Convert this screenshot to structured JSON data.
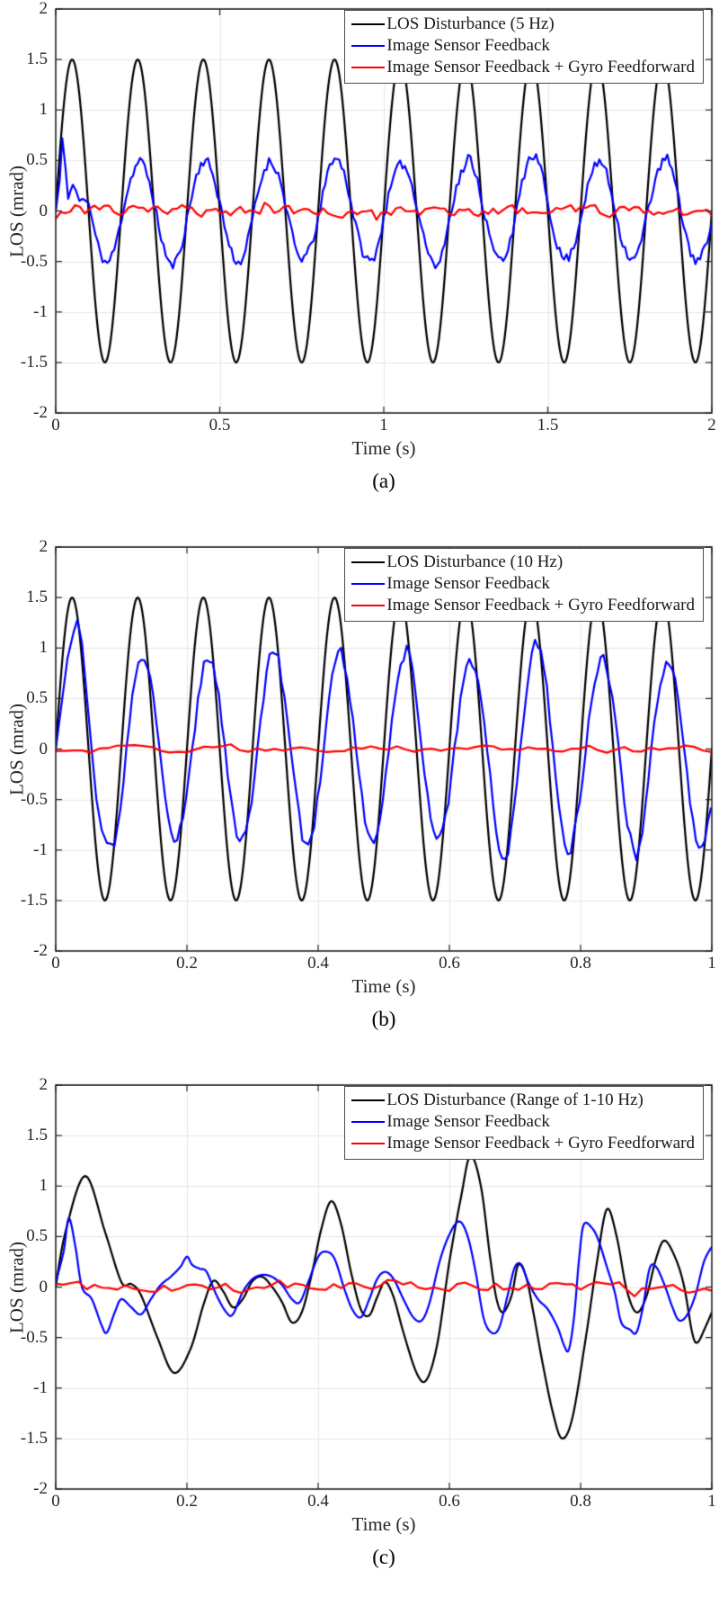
{
  "chart_data": [
    {
      "id": "a",
      "type": "line",
      "caption": "(a)",
      "xlabel": "Time (s)",
      "ylabel": "LOS (mrad)",
      "xlim": [
        0,
        2
      ],
      "ylim": [
        -2,
        2
      ],
      "grid": true,
      "legend_position": "top-right",
      "background": "#ffffff",
      "axis_color": "#262626",
      "grid_color": "#e6e6e6",
      "xticks": {
        "values": [
          0,
          0.5,
          1,
          1.5,
          2
        ],
        "labels": [
          "0",
          "0.5",
          "1",
          "1.5",
          "2"
        ]
      },
      "yticks": {
        "values": [
          2,
          1.5,
          1,
          0.5,
          0,
          -0.5,
          -1,
          -1.5,
          -2
        ],
        "labels": [
          "2",
          "1.5",
          "1",
          "0.5",
          "0",
          "-0.5",
          "-1",
          "-1.5",
          "-2"
        ]
      },
      "series": [
        {
          "name": "LOS Disturbance (5 Hz)",
          "color": "#000000",
          "line_width": 2.2,
          "model": {
            "kind": "sine",
            "amplitude": 1.5,
            "freq_hz": 5,
            "lag_s": 0,
            "noise": 0,
            "samples": 700
          }
        },
        {
          "name": "Image Sensor Feedback",
          "color": "#0000ff",
          "line_width": 2.2,
          "model": {
            "kind": "sine",
            "amplitude": 0.5,
            "freq_hz": 5,
            "lag_s": 0.005,
            "noise": 0.05,
            "amp_noise": 0.1,
            "noise_seed": 11,
            "samples": 280,
            "transient": [
              [
                0,
                0
              ],
              [
                0.012,
                0.3
              ],
              [
                0.02,
                0.72
              ],
              [
                0.03,
                0.42
              ],
              [
                0.038,
                0.12
              ],
              [
                0.045,
                0.2
              ],
              [
                0.052,
                0.26
              ],
              [
                0.062,
                0.2
              ],
              [
                0.072,
                0.1
              ],
              [
                0.082,
                0.12
              ],
              [
                0.092,
                0.1
              ],
              [
                0.1,
                0.08
              ]
            ]
          }
        },
        {
          "name": "Image Sensor Feedback + Gyro Feedforward",
          "color": "#ff0000",
          "line_width": 2.2,
          "model": {
            "kind": "noise",
            "amplitude": 0.075,
            "spike_prob": 0.12,
            "spike_gain": 1.9,
            "noise_seed": 23,
            "samples": 135
          }
        }
      ]
    },
    {
      "id": "b",
      "type": "line",
      "caption": "(b)",
      "xlabel": "Time (s)",
      "ylabel": "LOS (mrad)",
      "xlim": [
        0,
        1
      ],
      "ylim": [
        -2,
        2
      ],
      "grid": true,
      "legend_position": "top-right",
      "background": "#ffffff",
      "axis_color": "#262626",
      "grid_color": "#e6e6e6",
      "xticks": {
        "values": [
          0,
          0.2,
          0.4,
          0.6,
          0.8,
          1
        ],
        "labels": [
          "0",
          "0.2",
          "0.4",
          "0.6",
          "0.8",
          "1"
        ]
      },
      "yticks": {
        "values": [
          2,
          1.5,
          1,
          0.5,
          0,
          -0.5,
          -1,
          -1.5,
          -2
        ],
        "labels": [
          "2",
          "1.5",
          "1",
          "0.5",
          "0",
          "-0.5",
          "-1",
          "-1.5",
          "-2"
        ]
      },
      "series": [
        {
          "name": "LOS Disturbance (10 Hz)",
          "color": "#000000",
          "line_width": 2.2,
          "model": {
            "kind": "sine",
            "amplitude": 1.5,
            "freq_hz": 10,
            "lag_s": 0,
            "noise": 0,
            "samples": 600
          }
        },
        {
          "name": "Image Sensor Feedback",
          "color": "#0000ff",
          "line_width": 2.2,
          "model": {
            "kind": "sine",
            "amplitude": 0.97,
            "freq_hz": 10,
            "lag_s": 0.008,
            "noise": 0.05,
            "amp_noise": 0.12,
            "noise_seed": 17,
            "samples": 220,
            "transient": [
              [
                0,
                0
              ],
              [
                0.008,
                0.4
              ],
              [
                0.018,
                0.9
              ],
              [
                0.027,
                1.15
              ],
              [
                0.033,
                1.28
              ],
              [
                0.04,
                1.05
              ],
              [
                0.047,
                0.55
              ],
              [
                0.054,
                0.05
              ],
              [
                0.062,
                -0.5
              ],
              [
                0.07,
                -0.8
              ],
              [
                0.078,
                -0.93
              ],
              [
                0.085,
                -0.94
              ]
            ]
          }
        },
        {
          "name": "Image Sensor Feedback + Gyro Feedforward",
          "color": "#ff0000",
          "line_width": 2.2,
          "model": {
            "kind": "noise",
            "amplitude": 0.05,
            "spike_prob": 0.12,
            "spike_gain": 1.8,
            "noise_seed": 29,
            "samples": 75
          }
        }
      ]
    },
    {
      "id": "c",
      "type": "line",
      "caption": "(c)",
      "xlabel": "Time (s)",
      "ylabel": "LOS (mrad)",
      "xlim": [
        0,
        1
      ],
      "ylim": [
        -2,
        2
      ],
      "grid": true,
      "legend_position": "top-right",
      "background": "#ffffff",
      "axis_color": "#262626",
      "grid_color": "#e6e6e6",
      "xticks": {
        "values": [
          0,
          0.2,
          0.4,
          0.6,
          0.8,
          1
        ],
        "labels": [
          "0",
          "0.2",
          "0.4",
          "0.6",
          "0.8",
          "1"
        ]
      },
      "yticks": {
        "values": [
          2,
          1.5,
          1,
          0.5,
          0,
          -0.5,
          -1,
          -1.5,
          -2
        ],
        "labels": [
          "2",
          "1.5",
          "1",
          "0.5",
          "0",
          "-0.5",
          "-1",
          "-1.5",
          "-2"
        ]
      },
      "series": [
        {
          "name": "LOS Disturbance (Range of 1-10 Hz)",
          "color": "#000000",
          "line_width": 2.2,
          "model": {
            "kind": "keypoints-smooth",
            "points": [
              [
                0,
                0
              ],
              [
                0.015,
                0.55
              ],
              [
                0.045,
                1.1
              ],
              [
                0.075,
                0.55
              ],
              [
                0.1,
                0.05
              ],
              [
                0.115,
                0.03
              ],
              [
                0.13,
                -0.08
              ],
              [
                0.155,
                -0.5
              ],
              [
                0.18,
                -0.85
              ],
              [
                0.205,
                -0.62
              ],
              [
                0.225,
                -0.18
              ],
              [
                0.24,
                0.06
              ],
              [
                0.255,
                -0.04
              ],
              [
                0.27,
                -0.2
              ],
              [
                0.285,
                -0.12
              ],
              [
                0.3,
                0.06
              ],
              [
                0.315,
                0.1
              ],
              [
                0.33,
                0
              ],
              [
                0.345,
                -0.15
              ],
              [
                0.36,
                -0.35
              ],
              [
                0.375,
                -0.25
              ],
              [
                0.39,
                0.12
              ],
              [
                0.405,
                0.58
              ],
              [
                0.42,
                0.85
              ],
              [
                0.435,
                0.62
              ],
              [
                0.45,
                0.15
              ],
              [
                0.465,
                -0.22
              ],
              [
                0.478,
                -0.28
              ],
              [
                0.49,
                -0.1
              ],
              [
                0.502,
                0.05
              ],
              [
                0.515,
                -0.1
              ],
              [
                0.53,
                -0.45
              ],
              [
                0.55,
                -0.85
              ],
              [
                0.565,
                -0.92
              ],
              [
                0.582,
                -0.55
              ],
              [
                0.6,
                0.25
              ],
              [
                0.618,
                0.9
              ],
              [
                0.632,
                1.3
              ],
              [
                0.648,
                1.0
              ],
              [
                0.662,
                0.3
              ],
              [
                0.672,
                -0.12
              ],
              [
                0.682,
                -0.25
              ],
              [
                0.695,
                -0.08
              ],
              [
                0.705,
                0.22
              ],
              [
                0.717,
                0.1
              ],
              [
                0.728,
                -0.25
              ],
              [
                0.742,
                -0.75
              ],
              [
                0.758,
                -1.25
              ],
              [
                0.772,
                -1.5
              ],
              [
                0.788,
                -1.28
              ],
              [
                0.808,
                -0.5
              ],
              [
                0.825,
                0.25
              ],
              [
                0.84,
                0.77
              ],
              [
                0.855,
                0.5
              ],
              [
                0.87,
                -0.02
              ],
              [
                0.885,
                -0.25
              ],
              [
                0.9,
                -0.1
              ],
              [
                0.915,
                0.28
              ],
              [
                0.928,
                0.46
              ],
              [
                0.945,
                0.28
              ],
              [
                0.958,
                0
              ],
              [
                0.97,
                -0.45
              ],
              [
                0.978,
                -0.55
              ],
              [
                0.99,
                -0.4
              ],
              [
                1,
                -0.25
              ]
            ]
          }
        },
        {
          "name": "Image Sensor Feedback",
          "color": "#0000ff",
          "line_width": 2.2,
          "model": {
            "kind": "keypoints-smooth",
            "points": [
              [
                0,
                0.05
              ],
              [
                0.012,
                0.35
              ],
              [
                0.02,
                0.68
              ],
              [
                0.03,
                0.4
              ],
              [
                0.04,
                0
              ],
              [
                0.055,
                -0.12
              ],
              [
                0.07,
                -0.38
              ],
              [
                0.078,
                -0.45
              ],
              [
                0.09,
                -0.25
              ],
              [
                0.1,
                -0.12
              ],
              [
                0.115,
                -0.2
              ],
              [
                0.13,
                -0.27
              ],
              [
                0.145,
                -0.12
              ],
              [
                0.16,
                0.02
              ],
              [
                0.175,
                0.1
              ],
              [
                0.19,
                0.2
              ],
              [
                0.2,
                0.3
              ],
              [
                0.208,
                0.22
              ],
              [
                0.22,
                0.18
              ],
              [
                0.23,
                0.15
              ],
              [
                0.245,
                -0.08
              ],
              [
                0.26,
                -0.25
              ],
              [
                0.27,
                -0.27
              ],
              [
                0.285,
                -0.05
              ],
              [
                0.3,
                0.08
              ],
              [
                0.315,
                0.12
              ],
              [
                0.33,
                0.1
              ],
              [
                0.345,
                0.02
              ],
              [
                0.36,
                -0.12
              ],
              [
                0.372,
                -0.15
              ],
              [
                0.385,
                0.05
              ],
              [
                0.4,
                0.3
              ],
              [
                0.412,
                0.35
              ],
              [
                0.425,
                0.28
              ],
              [
                0.44,
                -0.02
              ],
              [
                0.452,
                -0.22
              ],
              [
                0.465,
                -0.3
              ],
              [
                0.478,
                -0.12
              ],
              [
                0.49,
                0.08
              ],
              [
                0.502,
                0.15
              ],
              [
                0.515,
                0.08
              ],
              [
                0.53,
                -0.12
              ],
              [
                0.545,
                -0.3
              ],
              [
                0.558,
                -0.33
              ],
              [
                0.57,
                -0.15
              ],
              [
                0.585,
                0.25
              ],
              [
                0.6,
                0.52
              ],
              [
                0.615,
                0.65
              ],
              [
                0.628,
                0.5
              ],
              [
                0.64,
                0.15
              ],
              [
                0.652,
                -0.3
              ],
              [
                0.664,
                -0.45
              ],
              [
                0.676,
                -0.4
              ],
              [
                0.69,
                -0.05
              ],
              [
                0.7,
                0.2
              ],
              [
                0.71,
                0.22
              ],
              [
                0.72,
                0.05
              ],
              [
                0.735,
                -0.12
              ],
              [
                0.75,
                -0.22
              ],
              [
                0.765,
                -0.4
              ],
              [
                0.775,
                -0.58
              ],
              [
                0.782,
                -0.62
              ],
              [
                0.79,
                -0.3
              ],
              [
                0.798,
                0.3
              ],
              [
                0.805,
                0.62
              ],
              [
                0.818,
                0.58
              ],
              [
                0.828,
                0.45
              ],
              [
                0.84,
                0.2
              ],
              [
                0.852,
                -0.05
              ],
              [
                0.862,
                -0.35
              ],
              [
                0.875,
                -0.42
              ],
              [
                0.885,
                -0.45
              ],
              [
                0.895,
                -0.2
              ],
              [
                0.905,
                0.18
              ],
              [
                0.915,
                0.2
              ],
              [
                0.928,
                0.02
              ],
              [
                0.94,
                -0.2
              ],
              [
                0.95,
                -0.33
              ],
              [
                0.962,
                -0.28
              ],
              [
                0.975,
                -0.08
              ],
              [
                0.988,
                0.25
              ],
              [
                1,
                0.4
              ]
            ]
          }
        },
        {
          "name": "Image Sensor Feedback + Gyro Feedforward",
          "color": "#ff0000",
          "line_width": 2.2,
          "model": {
            "kind": "noise",
            "amplitude": 0.07,
            "spike_prob": 0.12,
            "spike_gain": 1.9,
            "noise_seed": 41,
            "samples": 85
          }
        }
      ]
    }
  ]
}
